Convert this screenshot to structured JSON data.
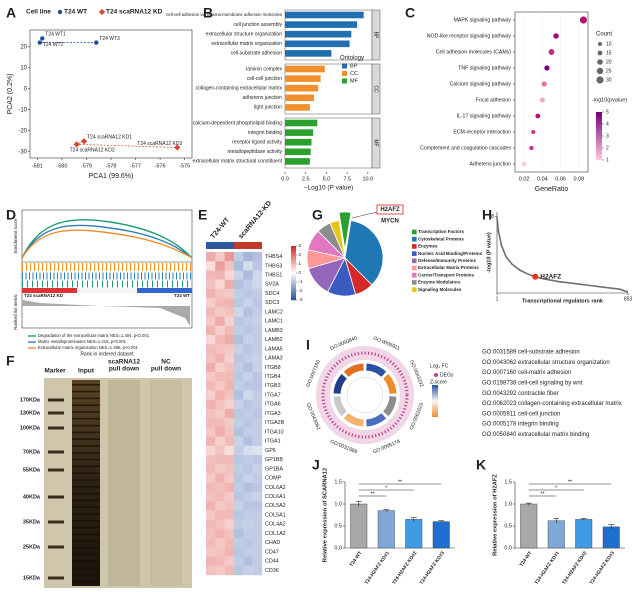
{
  "panel_labels": [
    "A",
    "B",
    "C",
    "D",
    "E",
    "F",
    "G",
    "H",
    "I",
    "J",
    "K"
  ],
  "chart_data": [
    {
      "type": "scatter",
      "xlabel": "PCA1 (99.6%)",
      "ylabel": "PCA2 (0.2%)",
      "legend_title": "Cell line",
      "xlim": [
        -581.3,
        -574.7
      ],
      "ylim": [
        -33,
        28
      ],
      "xticks": [
        -581,
        -580,
        -579,
        -578,
        -577,
        -576,
        -575
      ],
      "yticks": [
        -30,
        -20,
        -10,
        0,
        10,
        20
      ],
      "series": [
        {
          "name": "T24 WT",
          "color": "#1f4e9c",
          "x": [
            -580.8,
            -580.9,
            -578.6
          ],
          "values": [
            24,
            22,
            22
          ],
          "point_labels": [
            "T24 WT1",
            "T24 WT2",
            "T24 WT3"
          ]
        },
        {
          "name": "T24 scaRNA12 KD",
          "color": "#d6492c",
          "x": [
            -579.1,
            -579.4,
            -575.3
          ],
          "values": [
            -25,
            -26.5,
            -28
          ],
          "point_labels": [
            "T24 scaRNA12 KD1",
            "T24 scaRNA12 KD2",
            "T24 scaRNA12 KD3"
          ]
        }
      ]
    },
    {
      "type": "bar",
      "orientation": "horizontal",
      "xlabel": "−Log10 (P value)",
      "legend_title": "Ontology",
      "xlim": [
        0,
        10.5
      ],
      "xticks": [
        {
          "value": 0,
          "label": "0.0"
        },
        {
          "value": 2.5,
          "label": "2.5"
        },
        {
          "value": 5,
          "label": "5.0"
        },
        {
          "value": 7.5,
          "label": "7.5"
        },
        {
          "value": 10,
          "label": "10.0"
        }
      ],
      "series": [
        {
          "name": "BP",
          "color": "#1f6fb0",
          "categories": [
            "cell-cell adhesion via plasma-membrane adhesion molecules",
            "cell junction assembly",
            "extracellular structure organization",
            "extracellular matrix organization",
            "cell-substrate adhesion"
          ],
          "values": [
            9.5,
            8.7,
            8.0,
            7.8,
            5.6
          ]
        },
        {
          "name": "CC",
          "color": "#f28e2b",
          "categories": [
            "laminin complex",
            "cell-cell junction",
            "collagen-containing extracellular matrix",
            "adherens junction",
            "tight junction"
          ],
          "values": [
            4.8,
            4.3,
            4.0,
            3.5,
            3.0
          ]
        },
        {
          "name": "MF",
          "color": "#2ca02c",
          "categories": [
            "calcium-dependent phospholipid binding",
            "integrin binding",
            "receptor ligand activity",
            "metallopeptidase activity",
            "extracellular matrix structural constituent"
          ],
          "values": [
            3.9,
            3.4,
            3.2,
            3.1,
            3.0
          ]
        }
      ]
    },
    {
      "type": "dot",
      "xlabel": "GeneRatio",
      "xlim": [
        0.01,
        0.09
      ],
      "xticks": [
        0.02,
        0.04,
        0.06,
        0.08
      ],
      "categories": [
        "MAPK signaling pathway",
        "NOD-like receptor signaling pathway",
        "Cell adhesion molecules (CAMs)",
        "TNF signaling pathway",
        "Calcium signaling pathway",
        "Focal adhesion",
        "IL-17 signaling pathway",
        "ECM-receptor interaction",
        "Complement and coagulation cascades",
        "Adherens junction"
      ],
      "values": [
        0.085,
        0.055,
        0.05,
        0.045,
        0.042,
        0.04,
        0.035,
        0.03,
        0.028,
        0.02
      ],
      "sizes": [
        30,
        20,
        22,
        18,
        18,
        16,
        15,
        12,
        12,
        10
      ],
      "colors": [
        "#b5126e",
        "#a0127a",
        "#c0307e",
        "#7a0177",
        "#e46fa4",
        "#f3a6c8",
        "#b2187a",
        "#d13a8a",
        "#c8308a",
        "#f7c6dc"
      ],
      "highlight_index": 7,
      "size_legend_title": "Count",
      "size_ticks": [
        10,
        15,
        20,
        25,
        30
      ],
      "color_legend_title": "-log10(pvalue)",
      "color_ticks": [
        1,
        2,
        3,
        4,
        5
      ]
    },
    {
      "type": "heatmap",
      "column_groups": [
        "T24-WT",
        "scaRNA12-KD"
      ],
      "color_ticks": [
        -3,
        -2,
        -1,
        0,
        1,
        2,
        3
      ],
      "rows": [
        "THBS4",
        "THBS3",
        "THBS1",
        "SV2A",
        "SDC4",
        "SDC3",
        "LAMC2",
        "LAMC1",
        "LAMB3",
        "LAMB2",
        "LAMA5",
        "LAMA3",
        "ITGB8",
        "ITGB4",
        "ITGB3",
        "ITGA7",
        "ITGA6",
        "ITGA3",
        "ITGA2B",
        "ITGA10",
        "ITGA1",
        "GP6",
        "GP1BB",
        "GP1BA",
        "COMP",
        "COL6A2",
        "COL6A1",
        "COL5A2",
        "COL5A1",
        "COL4A2",
        "COL1A2",
        "CHAD",
        "CD47",
        "CD44",
        "CD36"
      ],
      "values": [
        [
          1.2,
          0.8,
          1.5,
          -0.9,
          -1.3,
          -1.1
        ],
        [
          0.5,
          1.4,
          0.9,
          -1.2,
          -0.6,
          -1.0
        ],
        [
          1.0,
          1.1,
          0.6,
          -0.8,
          -1.2,
          -0.7
        ],
        [
          0.9,
          0.6,
          1.2,
          -1.1,
          -0.9,
          -0.7
        ],
        [
          1.1,
          0.9,
          0.8,
          -0.9,
          -1.0,
          -0.9
        ],
        [
          0.7,
          1.0,
          1.1,
          -1.0,
          -0.8,
          -1.0
        ],
        [
          1.0,
          0.8,
          0.9,
          -0.7,
          -1.1,
          -0.9
        ],
        [
          0.8,
          1.2,
          0.7,
          -1.0,
          -0.9,
          -0.8
        ],
        [
          1.1,
          0.7,
          1.0,
          -0.9,
          -1.0,
          -0.9
        ],
        [
          0.6,
          1.0,
          1.2,
          -1.1,
          -0.8,
          -0.9
        ],
        [
          1.0,
          0.9,
          0.8,
          -0.8,
          -1.0,
          -0.9
        ],
        [
          0.9,
          1.1,
          0.7,
          -1.0,
          -0.9,
          -0.8
        ],
        [
          1.2,
          0.7,
          0.9,
          -0.9,
          -1.1,
          -0.8
        ],
        [
          0.8,
          1.0,
          1.0,
          -1.0,
          -0.8,
          -1.0
        ],
        [
          1.0,
          0.8,
          1.1,
          -0.9,
          -1.0,
          -1.0
        ],
        [
          0.7,
          1.1,
          0.9,
          -1.1,
          -0.7,
          -0.9
        ],
        [
          1.1,
          0.9,
          0.7,
          -0.8,
          -1.0,
          -0.9
        ],
        [
          0.9,
          0.8,
          1.2,
          -1.0,
          -0.9,
          -1.0
        ],
        [
          1.0,
          1.0,
          0.8,
          -0.9,
          -1.0,
          -0.9
        ],
        [
          0.8,
          1.2,
          0.9,
          -1.1,
          -0.9,
          -0.9
        ],
        [
          1.1,
          0.7,
          1.0,
          -0.8,
          -1.1,
          -0.9
        ],
        [
          0.6,
          0.9,
          0.5,
          -0.9,
          -0.6,
          -0.5
        ],
        [
          0.9,
          1.0,
          1.0,
          -1.0,
          -0.9,
          -1.0
        ],
        [
          1.0,
          0.8,
          0.9,
          -0.9,
          -1.0,
          -0.8
        ],
        [
          0.8,
          1.1,
          0.8,
          -1.0,
          -0.8,
          -0.9
        ],
        [
          1.0,
          0.9,
          1.1,
          -0.9,
          -1.1,
          -1.0
        ],
        [
          0.9,
          1.0,
          0.8,
          -1.0,
          -0.9,
          -0.8
        ],
        [
          1.1,
          0.8,
          0.9,
          -0.8,
          -1.0,
          -1.0
        ],
        [
          0.8,
          1.0,
          1.0,
          -1.0,
          -0.9,
          -0.9
        ],
        [
          1.0,
          0.9,
          0.7,
          -0.9,
          -0.8,
          -0.9
        ],
        [
          0.9,
          1.1,
          0.9,
          -1.1,
          -0.9,
          -0.9
        ],
        [
          1.0,
          0.8,
          1.0,
          -0.9,
          -1.0,
          -0.9
        ],
        [
          0.8,
          0.9,
          1.1,
          -1.0,
          -0.9,
          -0.9
        ],
        [
          1.1,
          1.0,
          0.8,
          -0.9,
          -1.1,
          -0.9
        ],
        [
          0.9,
          0.8,
          1.0,
          -1.0,
          -0.8,
          -0.9
        ]
      ]
    },
    {
      "type": "pie",
      "categories": [
        "Transcription Factors",
        "Cytoskeletal Proteins",
        "Enzymes",
        "Nucleic Acid Binding/Proteins",
        "Defense/Immunity Proteins",
        "Extracellular Matrix Proteins",
        "Carrier/Transport Proteins",
        "Enzyme Modulators",
        "Signaling Molecules"
      ],
      "values": [
        5,
        35,
        8,
        12,
        13,
        8,
        9,
        6,
        4
      ],
      "colors": [
        "#2ca02c",
        "#1f77b4",
        "#d62728",
        "#3a5bbf",
        "#9467bd",
        "#ff9896",
        "#e377c2",
        "#8c8c8c",
        "#e6c619"
      ],
      "explode_index": 0,
      "annotations": [
        "H2AFZ",
        "MYCN"
      ]
    },
    {
      "type": "line",
      "xlabel": "Transcriptional regulators rank",
      "ylabel": "-log10 (P value)",
      "xlim": [
        1,
        853
      ],
      "xticks": [
        1,
        853
      ],
      "ylim": [
        0,
        8.5
      ],
      "yticks": [
        8
      ],
      "x": [
        1,
        10,
        30,
        60,
        100,
        150,
        200,
        250,
        300,
        400,
        500,
        600,
        700,
        800,
        853
      ],
      "values": [
        8,
        6.5,
        5,
        3.8,
        3,
        2.4,
        2,
        1.7,
        1.5,
        1.2,
        1,
        0.8,
        0.6,
        0.4,
        0.1
      ],
      "color": "#707070",
      "highlight": {
        "label": "H2AFZ",
        "x": 250,
        "value": 1.7,
        "color": "#e8321e"
      }
    },
    {
      "type": "bar",
      "orientation": "vertical",
      "ylabel": "Relative expression of SCARNA12",
      "categories": [
        "T24-WT",
        "T24-H2AFZ KD#1",
        "T24-H2AFZ KD#2",
        "T24-H2AFZ KD#3"
      ],
      "values": [
        1.0,
        0.85,
        0.65,
        0.6
      ],
      "errors": [
        0.06,
        0.02,
        0.04,
        0.02
      ],
      "colors": [
        "#a8a8a8",
        "#7fa8d6",
        "#3f9be6",
        "#1f6fd1"
      ],
      "ylim": [
        0,
        1.5
      ],
      "yticks": [
        {
          "value": 0,
          "label": "0.0"
        },
        {
          "value": 0.5,
          "label": "0.5"
        },
        {
          "value": 1,
          "label": "1.0"
        },
        {
          "value": 1.5,
          "label": "1.5"
        }
      ],
      "significance": [
        "**",
        "*",
        "**"
      ]
    },
    {
      "type": "bar",
      "orientation": "vertical",
      "ylabel": "Relative expression of H2AFZ",
      "categories": [
        "T24-WT",
        "T24-H2AFZ KD#1",
        "T24-H2AFZ KD#2",
        "T24-H2AFZ KD#3"
      ],
      "values": [
        1.0,
        0.62,
        0.65,
        0.48
      ],
      "errors": [
        0.02,
        0.05,
        0.02,
        0.05
      ],
      "colors": [
        "#a8a8a8",
        "#7fa8d6",
        "#3f9be6",
        "#1f6fd1"
      ],
      "ylim": [
        0,
        1.5
      ],
      "yticks": [
        {
          "value": 0,
          "label": "0.0"
        },
        {
          "value": 0.5,
          "label": "0.5"
        },
        {
          "value": 1,
          "label": "1.0"
        },
        {
          "value": 1.5,
          "label": "1.5"
        }
      ],
      "significance": [
        "**",
        "*",
        "**"
      ]
    }
  ],
  "gsea": {
    "ylabel_top": "Enrichment score",
    "ylabel_bottom": "Ranked list metric",
    "xlabel": "Rank in ordered dataset",
    "left_label": "T24 scaRNA12 KD",
    "right_label": "T24 WT",
    "legend": [
      "Degradation of the extracellular matrix NES=1.404, p<0.001",
      "Matrix metalloproteinases NES=1.415, p<0.001",
      "Extracellular matrix organization NES=1.385, p<0.001"
    ],
    "colors": [
      "#1b9e77",
      "#2c7fb8",
      "#f28e2b"
    ]
  },
  "gel": {
    "lanes": [
      [
        "Marker"
      ],
      [
        "Input"
      ],
      [
        "scaRNA12",
        "pull down"
      ],
      [
        "NC",
        "pull down"
      ]
    ],
    "markers": [
      "170KDa",
      "130KDa",
      "100KDa",
      "70KDa",
      "55KDa",
      "40KDa",
      "35KDa",
      "25KDa",
      "15KDa"
    ]
  },
  "circos": {
    "circle_labels": [
      "GO:0005911",
      "GO:0043292",
      "GO:0062023",
      "GO:0005178",
      "GO:0031589",
      "GO:0043062",
      "GO:0007160",
      "GO:0050840"
    ],
    "fc_title": "Log₂ FC",
    "degs": "DEGs",
    "z_title": "Z-score",
    "terms": [
      {
        "id": "GO:0031589",
        "name": "cell-substrate adhesion"
      },
      {
        "id": "GO:0043062",
        "name": "extracellular structure organization"
      },
      {
        "id": "GO:0007160",
        "name": "cell-matrix adhesion"
      },
      {
        "id": "GO:0198738",
        "name": "cell-cell signaling by wnt"
      },
      {
        "id": "GO:0043292",
        "name": "contractile fiber"
      },
      {
        "id": "GO:0062023",
        "name": "collagen-containing extracellular matrix"
      },
      {
        "id": "GO:0005911",
        "name": "cell-cell junction"
      },
      {
        "id": "GO:0005178",
        "name": "integrin binding"
      },
      {
        "id": "GO:0050840",
        "name": "extracellular matrix binding"
      }
    ]
  }
}
